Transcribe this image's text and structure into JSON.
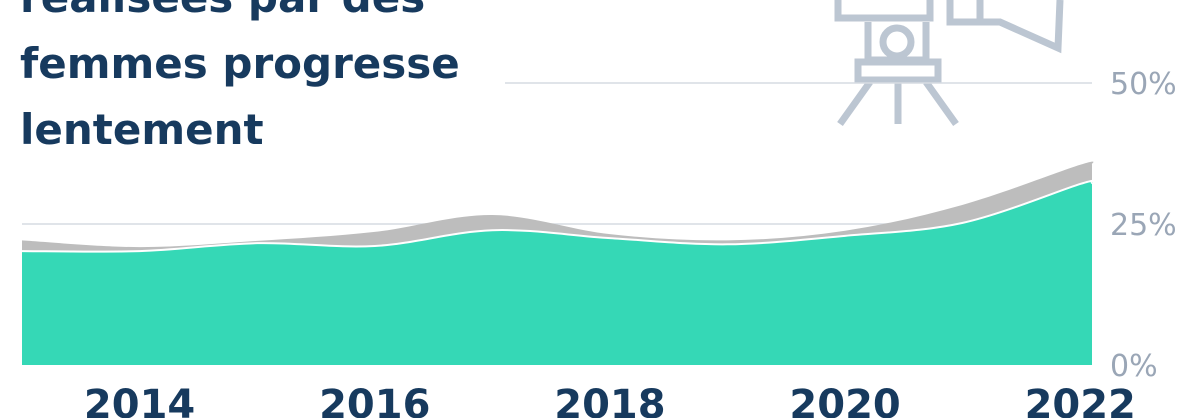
{
  "chart_data": {
    "type": "area",
    "title": [
      "réalisées par des",
      "femmes progresse",
      "lentement"
    ],
    "x": [
      2013,
      2014,
      2015,
      2016,
      2017,
      2018,
      2019,
      2020,
      2021,
      2022,
      2022.1
    ],
    "series": [
      {
        "color": "#bdbdbd",
        "values": [
          22.1,
          20.9,
          22.0,
          23.6,
          26.6,
          23.2,
          22.1,
          23.8,
          28.4,
          35.5,
          35.6
        ]
      },
      {
        "color": "#35d8b6",
        "values": [
          20.2,
          20.2,
          21.6,
          21.1,
          23.9,
          22.5,
          21.4,
          22.9,
          25.2,
          32.1,
          32.3
        ]
      }
    ],
    "xlim": [
      2013,
      2022.1
    ],
    "xticks": [
      2014,
      2016,
      2018,
      2020,
      2022
    ],
    "ylim": [
      0,
      50
    ],
    "yticks": [
      {
        "value": 0,
        "label": "0%"
      },
      {
        "value": 25,
        "label": "25%"
      },
      {
        "value": 50,
        "label": "50%"
      }
    ],
    "grid": true
  }
}
